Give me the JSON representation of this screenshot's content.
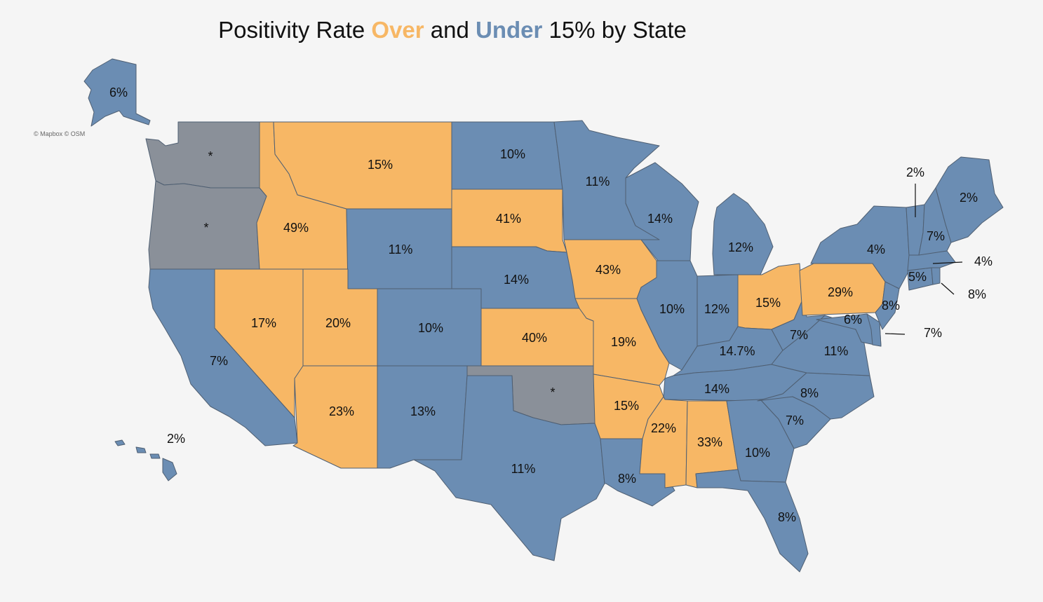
{
  "title": {
    "part1": "Positivity Rate ",
    "over": "Over",
    "part2": " and ",
    "under": "Under",
    "part3": " 15% by State"
  },
  "attribution": "© Mapbox © OSM",
  "colors": {
    "over": "#f7b765",
    "under": "#6b8db3",
    "no_data": "#8a9099",
    "background": "#f5f5f5",
    "border": "#4f5f72"
  },
  "states": [
    {
      "abbr": "WA",
      "label": "*",
      "category": "no_data"
    },
    {
      "abbr": "OR",
      "label": "*",
      "category": "no_data"
    },
    {
      "abbr": "CA",
      "label": "7%",
      "category": "under"
    },
    {
      "abbr": "ID",
      "label": "49%",
      "category": "over"
    },
    {
      "abbr": "NV",
      "label": "17%",
      "category": "over"
    },
    {
      "abbr": "MT",
      "label": "15%",
      "category": "over"
    },
    {
      "abbr": "WY",
      "label": "11%",
      "category": "under"
    },
    {
      "abbr": "UT",
      "label": "20%",
      "category": "over"
    },
    {
      "abbr": "AZ",
      "label": "23%",
      "category": "over"
    },
    {
      "abbr": "CO",
      "label": "10%",
      "category": "under"
    },
    {
      "abbr": "NM",
      "label": "13%",
      "category": "under"
    },
    {
      "abbr": "ND",
      "label": "10%",
      "category": "under"
    },
    {
      "abbr": "SD",
      "label": "41%",
      "category": "over"
    },
    {
      "abbr": "NE",
      "label": "14%",
      "category": "under"
    },
    {
      "abbr": "KS",
      "label": "40%",
      "category": "over"
    },
    {
      "abbr": "OK",
      "label": "*",
      "category": "no_data"
    },
    {
      "abbr": "TX",
      "label": "11%",
      "category": "under"
    },
    {
      "abbr": "MN",
      "label": "11%",
      "category": "under"
    },
    {
      "abbr": "IA",
      "label": "43%",
      "category": "over"
    },
    {
      "abbr": "MO",
      "label": "19%",
      "category": "over"
    },
    {
      "abbr": "AR",
      "label": "15%",
      "category": "over"
    },
    {
      "abbr": "LA",
      "label": "8%",
      "category": "under"
    },
    {
      "abbr": "WI",
      "label": "14%",
      "category": "under"
    },
    {
      "abbr": "IL",
      "label": "10%",
      "category": "under"
    },
    {
      "abbr": "MI",
      "label": "12%",
      "category": "under"
    },
    {
      "abbr": "IN",
      "label": "12%",
      "category": "under"
    },
    {
      "abbr": "OH",
      "label": "15%",
      "category": "over"
    },
    {
      "abbr": "KY",
      "label": "14.7%",
      "category": "under"
    },
    {
      "abbr": "TN",
      "label": "14%",
      "category": "under"
    },
    {
      "abbr": "MS",
      "label": "22%",
      "category": "over"
    },
    {
      "abbr": "AL",
      "label": "33%",
      "category": "over"
    },
    {
      "abbr": "GA",
      "label": "10%",
      "category": "under"
    },
    {
      "abbr": "FL",
      "label": "8%",
      "category": "under"
    },
    {
      "abbr": "SC",
      "label": "7%",
      "category": "under"
    },
    {
      "abbr": "NC",
      "label": "8%",
      "category": "under"
    },
    {
      "abbr": "VA",
      "label": "11%",
      "category": "under"
    },
    {
      "abbr": "WV",
      "label": "7%",
      "category": "under"
    },
    {
      "abbr": "PA",
      "label": "29%",
      "category": "over"
    },
    {
      "abbr": "NY",
      "label": "4%",
      "category": "under"
    },
    {
      "abbr": "NJ",
      "label": "8%",
      "category": "under"
    },
    {
      "abbr": "MD",
      "label": "6%",
      "category": "under"
    },
    {
      "abbr": "DE",
      "label": "7%",
      "category": "under"
    },
    {
      "abbr": "CT",
      "label": "5%",
      "category": "under"
    },
    {
      "abbr": "RI",
      "label": "8%",
      "category": "under"
    },
    {
      "abbr": "MA",
      "label": "4%",
      "category": "under"
    },
    {
      "abbr": "VT",
      "label": "2%",
      "category": "under"
    },
    {
      "abbr": "NH",
      "label": "7%",
      "category": "under"
    },
    {
      "abbr": "ME",
      "label": "2%",
      "category": "under"
    },
    {
      "abbr": "AK",
      "label": "6%",
      "category": "under"
    },
    {
      "abbr": "HI",
      "label": "2%",
      "category": "under"
    }
  ]
}
